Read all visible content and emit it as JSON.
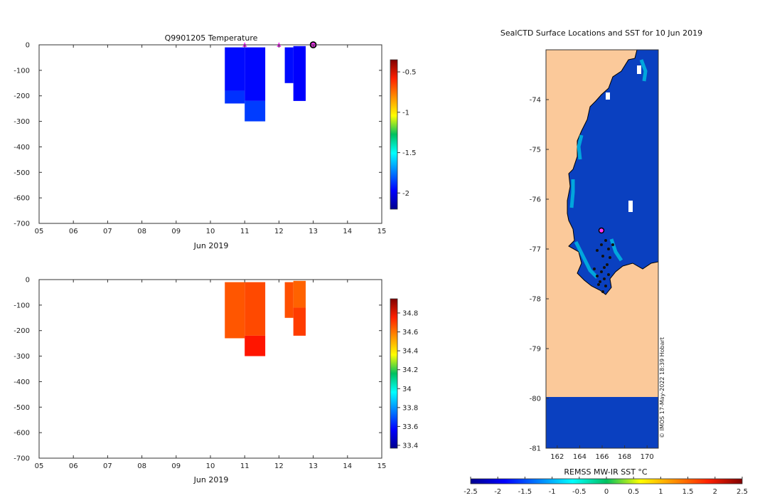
{
  "colors": {
    "land": "#fbc99a",
    "ocean": "#0a40c0",
    "ice_edge": "#00a8d8",
    "marker": "#ff33ff",
    "cold": "#0c3fc6",
    "salty": "#e07000",
    "salty_deep": "#c84a00"
  },
  "chart_data": [
    {
      "id": "temp",
      "type": "heatmap",
      "title": "Q9901205  Temperature",
      "xlabel": "Jun 2019",
      "x_ticks": [
        "05",
        "06",
        "07",
        "08",
        "09",
        "10",
        "11",
        "12",
        "13",
        "14",
        "15"
      ],
      "xlim": [
        5,
        15
      ],
      "ylim": [
        -700,
        0
      ],
      "y_ticks": [
        "0",
        "-100",
        "-200",
        "-300",
        "-400",
        "-500",
        "-600",
        "-700"
      ],
      "colorbar": {
        "min": -2.2,
        "max": -0.35,
        "ticks": [
          "-0.5",
          "-1",
          "-1.5",
          "-2"
        ],
        "tick_values": [
          -0.5,
          -1,
          -1.5,
          -2
        ],
        "colormap": "jet"
      },
      "profiles": [
        {
          "x0": 10.42,
          "x1": 11.0,
          "top": -10,
          "bottom": -230,
          "value": -1.95,
          "deep_value": -1.88,
          "deep_from": -180
        },
        {
          "x0": 11.0,
          "x1": 11.6,
          "top": -10,
          "bottom": -300,
          "value": -1.96,
          "deep_value": -1.86,
          "deep_from": -220
        },
        {
          "x0": 12.17,
          "x1": 12.42,
          "top": -10,
          "bottom": -150,
          "value": -1.95
        },
        {
          "x0": 12.42,
          "x1": 12.78,
          "top": -5,
          "bottom": -220,
          "value": -1.97
        }
      ],
      "markers": [
        {
          "label": "▲",
          "x": 11.0,
          "y": 0
        },
        {
          "label": "▲",
          "x": 12.0,
          "y": 0
        },
        {
          "label": "●",
          "x": 13.0,
          "y": 0
        }
      ]
    },
    {
      "id": "sal",
      "type": "heatmap",
      "xlabel": "Jun 2019",
      "x_ticks": [
        "05",
        "06",
        "07",
        "08",
        "09",
        "10",
        "11",
        "12",
        "13",
        "14",
        "15"
      ],
      "xlim": [
        5,
        15
      ],
      "ylim": [
        -700,
        0
      ],
      "y_ticks": [
        "0",
        "-100",
        "-200",
        "-300",
        "-400",
        "-500",
        "-600",
        "-700"
      ],
      "colorbar": {
        "min": 33.37,
        "max": 34.95,
        "ticks": [
          "34.8",
          "34.6",
          "34.4",
          "34.2",
          "34",
          "33.8",
          "33.6",
          "33.4"
        ],
        "tick_values": [
          34.8,
          34.6,
          34.4,
          34.2,
          34.0,
          33.8,
          33.6,
          33.4
        ],
        "colormap": "jet"
      },
      "profiles": [
        {
          "x0": 10.42,
          "x1": 11.0,
          "top": -10,
          "bottom": -230,
          "value": 34.62
        },
        {
          "x0": 11.0,
          "x1": 11.6,
          "top": -10,
          "bottom": -300,
          "value": 34.64,
          "deep_value": 34.72,
          "deep_from": -220
        },
        {
          "x0": 12.17,
          "x1": 12.42,
          "top": -10,
          "bottom": -150,
          "value": 34.63
        },
        {
          "x0": 12.42,
          "x1": 12.78,
          "top": -5,
          "bottom": -220,
          "value": 34.6,
          "deep_value": 34.66,
          "deep_from": -110
        }
      ]
    },
    {
      "id": "map",
      "type": "map",
      "title": "SealCTD Surface Locations and SST for 10 Jun 2019",
      "lon_range": [
        161,
        171
      ],
      "lat_range": [
        -81,
        -73
      ],
      "x_ticks": [
        "162",
        "164",
        "166",
        "168",
        "170"
      ],
      "y_ticks": [
        "-74",
        "-75",
        "-76",
        "-77",
        "-78",
        "-79",
        "-80",
        "-81"
      ],
      "colorbar_label": "REMSS MW-IR SST °C",
      "colorbar_ticks": [
        "-2.5",
        "-2",
        "-1.5",
        "-1",
        "-0.5",
        "0",
        "0.5",
        "1",
        "1.5",
        "2",
        "2.5"
      ],
      "credit": "© IMOS 17-May-2022 18:39 Hobart"
    }
  ]
}
